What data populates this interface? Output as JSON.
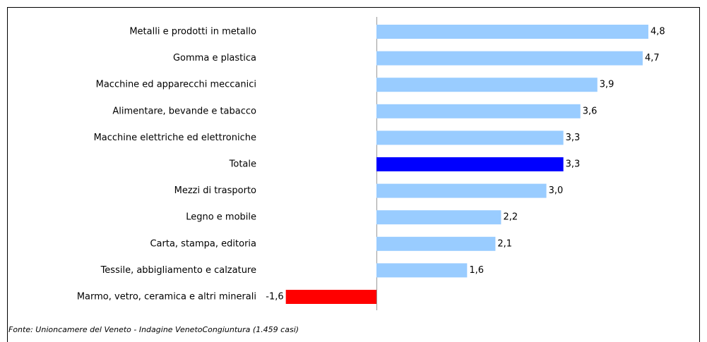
{
  "chart_data": {
    "type": "bar",
    "orientation": "horizontal",
    "categories": [
      "Metalli e prodotti in metallo",
      "Gomma e plastica",
      "Macchine ed apparecchi meccanici",
      "Alimentare, bevande e tabacco",
      "Macchine elettriche ed elettroniche",
      "Totale",
      "Mezzi di trasporto",
      "Legno e mobile",
      "Carta, stampa, editoria",
      "Tessile, abbigliamento e calzature",
      "Marmo, vetro, ceramica e altri minerali"
    ],
    "values": [
      4.8,
      4.7,
      3.9,
      3.6,
      3.3,
      3.3,
      3.0,
      2.2,
      2.1,
      1.6,
      -1.6
    ],
    "value_labels": [
      "4,8",
      "4,7",
      "3,9",
      "3,6",
      "3,3",
      "3,3",
      "3,0",
      "2,2",
      "2,1",
      "1,6",
      "-1,6"
    ],
    "colors": [
      "#99ccff",
      "#99ccff",
      "#99ccff",
      "#99ccff",
      "#99ccff",
      "#0000ff",
      "#99ccff",
      "#99ccff",
      "#99ccff",
      "#99ccff",
      "#ff0000"
    ],
    "source": "Fonte: Unioncamere del Veneto - Indagine VenetoCongiuntura (1.459 casi)"
  }
}
